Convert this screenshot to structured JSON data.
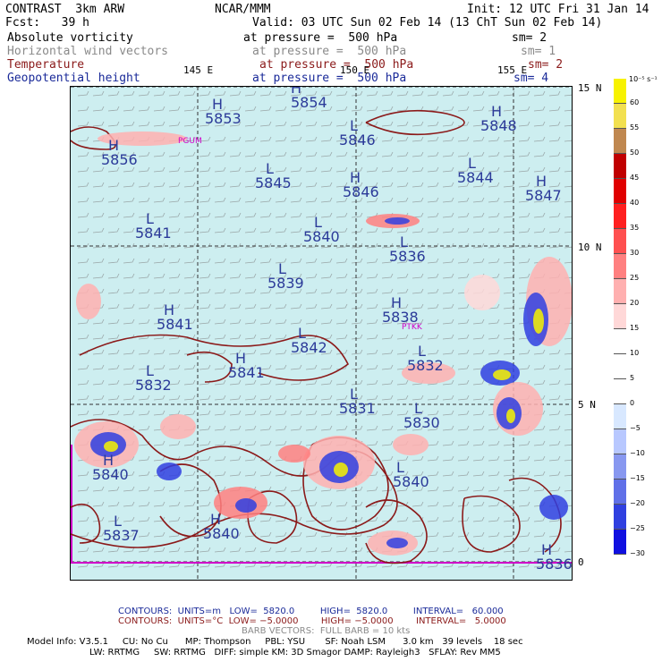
{
  "header": {
    "left1": "CONTRAST  3km ARW",
    "center1": "NCAR/MMM",
    "right1": "Init: 12 UTC Fri 31 Jan 14",
    "left2": "Fcst:   39 h",
    "right2": "Valid: 03 UTC Sun 02 Feb 14 (13 ChT Sun 02 Feb 14)",
    "fields": [
      {
        "name": "Absolute vorticity",
        "pressure": "at pressure =  500 hPa",
        "sm": "sm= 2",
        "color": "#000000"
      },
      {
        "name": "Horizontal wind vectors",
        "pressure": "at pressure =  500 hPa",
        "sm": "sm= 1",
        "color": "#8a8a8a"
      },
      {
        "name": "Temperature",
        "pressure": "at pressure =  500 hPa",
        "sm": "sm= 2",
        "color": "#8b1a1a"
      },
      {
        "name": "Geopotential height",
        "pressure": "at pressure =  500 hPa",
        "sm": "sm= 4",
        "color": "#1a2a99"
      }
    ]
  },
  "axes": {
    "lon_labels": [
      "145 E",
      "150 E",
      "155 E"
    ],
    "lat_labels": [
      "15 N",
      "10 N",
      "5 N",
      "0"
    ]
  },
  "stations": [
    "PGUM",
    "PTKK"
  ],
  "contour_labels": [
    {
      "t": "H",
      "v": "5854"
    },
    {
      "t": "H",
      "v": "5853"
    },
    {
      "t": "H",
      "v": "5856"
    },
    {
      "t": "L",
      "v": "5846"
    },
    {
      "t": "H",
      "v": "5848"
    },
    {
      "t": "L",
      "v": "5845"
    },
    {
      "t": "H",
      "v": "5846"
    },
    {
      "t": "L",
      "v": "5844"
    },
    {
      "t": "H",
      "v": "5847"
    },
    {
      "t": "L",
      "v": "5841"
    },
    {
      "t": "L",
      "v": "5840"
    },
    {
      "t": "L",
      "v": "5836"
    },
    {
      "t": "L",
      "v": "5839"
    },
    {
      "t": "H",
      "v": "5838"
    },
    {
      "t": "H",
      "v": "5841"
    },
    {
      "t": "L",
      "v": "5842"
    },
    {
      "t": "H",
      "v": "5841"
    },
    {
      "t": "L",
      "v": "5832"
    },
    {
      "t": "L",
      "v": "5832"
    },
    {
      "t": "L",
      "v": "5831"
    },
    {
      "t": "L",
      "v": "5830"
    },
    {
      "t": "L",
      "v": "5840"
    },
    {
      "t": "H",
      "v": "5840"
    },
    {
      "t": "L",
      "v": "5837"
    },
    {
      "t": "H",
      "v": "5840"
    },
    {
      "t": "H",
      "v": "5836"
    }
  ],
  "colorbar": {
    "unit": "10⁻⁵ s⁻¹",
    "ticks": [
      "60",
      "55",
      "50",
      "45",
      "40",
      "35",
      "30",
      "25",
      "20",
      "15",
      "10",
      "5",
      "0",
      "−5",
      "−10",
      "−15",
      "−20",
      "−25",
      "−30"
    ],
    "colors": [
      "#f7f200",
      "#f2e050",
      "#c08850",
      "#c00000",
      "#e00000",
      "#ff2020",
      "#ff5050",
      "#ff8080",
      "#ffb0b0",
      "#ffd8d8",
      "#ffffff",
      "#ffffff",
      "#ffffff",
      "#d8e8ff",
      "#b8c8ff",
      "#8898f0",
      "#6070e8",
      "#3040e0",
      "#1010e0"
    ]
  },
  "footer": {
    "contours1": "CONTOURS:  UNITS=m   LOW=  5820.0         HIGH=  5820.0         INTERVAL=   60.000",
    "contours2": "CONTOURS:  UNITS=°C  LOW= −5.0000        HIGH= −5.0000        INTERVAL=   5.0000",
    "barbs": "BARB VECTORS:  FULL BARB = 10 kts",
    "model1": "Model Info: V3.5.1     CU: No Cu      MP: Thompson     PBL: YSU       SF: Noah LSM      3.0 km   39 levels    18 sec",
    "model2": "LW: RRTMG     SW: RRTMG   DIFF: simple KM: 3D Smagor DAMP: Rayleigh3   SFLAY: Rev MM5"
  }
}
